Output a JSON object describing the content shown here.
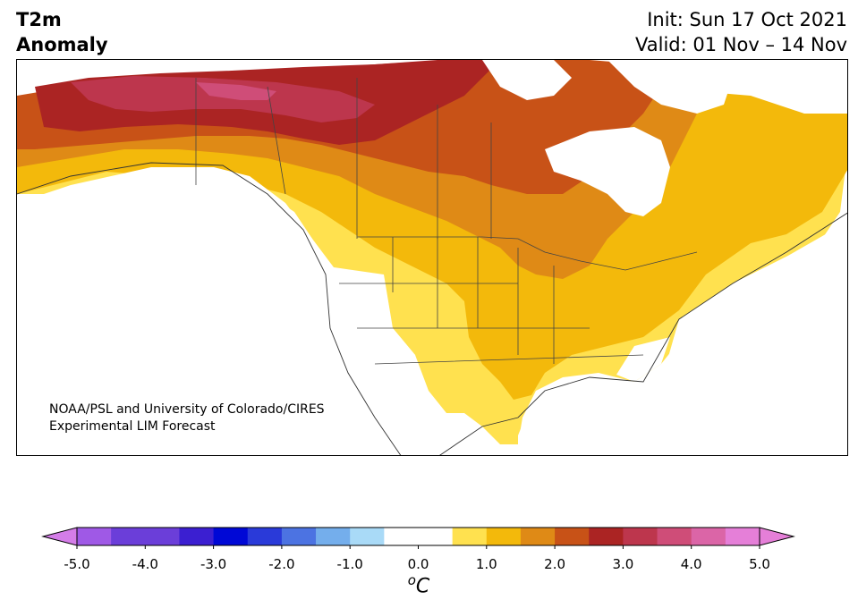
{
  "header": {
    "title_line1": "T2m",
    "title_line2": "Anomaly",
    "init_text": "Init: Sun 17 Oct 2021",
    "valid_text": "Valid: 01 Nov – 14 Nov"
  },
  "map": {
    "region": "North America",
    "variable": "2-meter temperature anomaly",
    "credit_line1": "NOAA/PSL and University of Colorado/CIRES",
    "credit_line2": "Experimental LIM Forecast"
  },
  "colorbar": {
    "unit_label": "C",
    "unit_superscript": "o",
    "ticks": [
      "-5.0",
      "-4.0",
      "-3.0",
      "-2.0",
      "-1.0",
      "0.0",
      "1.0",
      "2.0",
      "3.0",
      "4.0",
      "5.0"
    ],
    "bins": [
      {
        "from": -5.0,
        "to": -4.5,
        "color": "#9f59e6"
      },
      {
        "from": -4.5,
        "to": -4.0,
        "color": "#6b3ed9"
      },
      {
        "from": -4.0,
        "to": -3.5,
        "color": "#6b3ed9"
      },
      {
        "from": -3.5,
        "to": -3.0,
        "color": "#3b1fd1"
      },
      {
        "from": -3.0,
        "to": -2.5,
        "color": "#0008d6"
      },
      {
        "from": -2.5,
        "to": -2.0,
        "color": "#2a3ad9"
      },
      {
        "from": -2.0,
        "to": -1.5,
        "color": "#4c73e2"
      },
      {
        "from": -1.5,
        "to": -1.0,
        "color": "#74aeec"
      },
      {
        "from": -1.0,
        "to": -0.5,
        "color": "#a9daf7"
      },
      {
        "from": -0.5,
        "to": 0.5,
        "color": "#ffffff"
      },
      {
        "from": 0.5,
        "to": 1.0,
        "color": "#ffe14f"
      },
      {
        "from": 1.0,
        "to": 1.5,
        "color": "#f3b90b"
      },
      {
        "from": 1.5,
        "to": 2.0,
        "color": "#df8a16"
      },
      {
        "from": 2.0,
        "to": 2.5,
        "color": "#c85217"
      },
      {
        "from": 2.5,
        "to": 3.0,
        "color": "#ab2423"
      },
      {
        "from": 3.0,
        "to": 3.5,
        "color": "#bd364d"
      },
      {
        "from": 3.5,
        "to": 4.0,
        "color": "#cf4d78"
      },
      {
        "from": 4.0,
        "to": 4.5,
        "color": "#db65a7"
      },
      {
        "from": 4.5,
        "to": 5.0,
        "color": "#e57fd8"
      }
    ],
    "extend_low_color": "#d47de8",
    "extend_high_color": "#e57fd8"
  }
}
